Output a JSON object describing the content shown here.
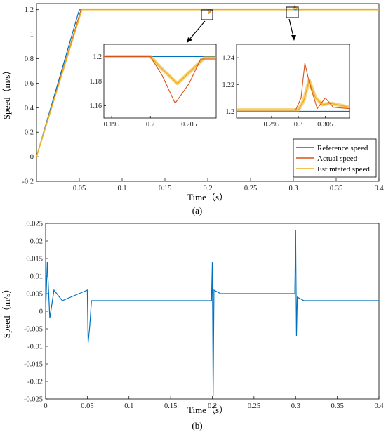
{
  "colors": {
    "reference": "#0072BD",
    "actual": "#D95319",
    "estimated": "#EDB120",
    "error": "#0072BD"
  },
  "chart_data": [
    {
      "id": "a",
      "type": "line",
      "caption": "(a)",
      "xlabel": "Time（s）",
      "ylabel": "Speed（m/s）",
      "xlim": [
        0,
        0.4
      ],
      "ylim": [
        -0.2,
        1.25
      ],
      "xticks": [
        "0.05",
        "0.1",
        "0.15",
        "0.2",
        "0.25",
        "0.3",
        "0.35",
        "0.4"
      ],
      "yticks": [
        "-0.2",
        "0",
        "0.2",
        "0.4",
        "0.6",
        "0.8",
        "1",
        "1.2"
      ],
      "legend": {
        "position": "bottom-right",
        "entries": [
          "Reference speed",
          "Actual speed",
          "Estimtated speed"
        ]
      },
      "series": [
        {
          "name": "Reference speed",
          "x": [
            0,
            0.05,
            0.4
          ],
          "y": [
            0,
            1.2,
            1.2
          ]
        },
        {
          "name": "Actual speed",
          "x": [
            0,
            0.052,
            0.2,
            0.2015,
            0.2035,
            0.205,
            0.3,
            0.3015,
            0.3035,
            0.305,
            0.4
          ],
          "y": [
            0,
            1.2,
            1.2,
            1.17,
            1.19,
            1.2,
            1.2,
            1.23,
            1.21,
            1.2,
            1.2
          ]
        },
        {
          "name": "Estimtated speed",
          "x": [
            0,
            0.053,
            0.2,
            0.2015,
            0.2035,
            0.205,
            0.3,
            0.3015,
            0.3035,
            0.305,
            0.4
          ],
          "y": [
            0,
            1.2,
            1.2,
            1.18,
            1.195,
            1.2,
            1.2,
            1.22,
            1.21,
            1.2,
            1.2
          ]
        }
      ],
      "insets": [
        {
          "id": "inset-1",
          "xlim": [
            0.194,
            0.2085
          ],
          "ylim": [
            1.15,
            1.21
          ],
          "xticks": [
            "0.195",
            "0.2",
            "0.205"
          ],
          "yticks": [
            "1.16",
            "1.18",
            "1.2"
          ],
          "reference": {
            "x": [
              0.194,
              0.2085
            ],
            "y": [
              1.2,
              1.2
            ]
          },
          "actual": {
            "x": [
              0.194,
              0.198,
              0.2,
              0.2015,
              0.2032,
              0.205,
              0.2065,
              0.2085
            ],
            "y": [
              1.2,
              1.2,
              1.2,
              1.185,
              1.162,
              1.178,
              1.198,
              1.198
            ]
          },
          "estimated": {
            "x": [
              0.194,
              0.198,
              0.2,
              0.2015,
              0.2035,
              0.2055,
              0.207,
              0.2085
            ],
            "y": [
              1.2,
              1.2,
              1.2,
              1.19,
              1.178,
              1.19,
              1.199,
              1.199
            ]
          }
        },
        {
          "id": "inset-2",
          "xlim": [
            0.2885,
            0.3095
          ],
          "ylim": [
            1.195,
            1.25
          ],
          "xticks": [
            "0.295",
            "0.3",
            "0.305"
          ],
          "yticks": [
            "1.2",
            "1.22",
            "1.24"
          ],
          "reference": {
            "x": [
              0.2885,
              0.3095
            ],
            "y": [
              1.2,
              1.2
            ]
          },
          "actual": {
            "x": [
              0.2885,
              0.2995,
              0.3005,
              0.3012,
              0.302,
              0.3035,
              0.305,
              0.3065,
              0.3095
            ],
            "y": [
              1.201,
              1.201,
              1.21,
              1.236,
              1.222,
              1.202,
              1.21,
              1.203,
              1.202
            ]
          },
          "estimated": {
            "x": [
              0.2885,
              0.3,
              0.301,
              0.302,
              0.3032,
              0.3045,
              0.306,
              0.3095
            ],
            "y": [
              1.201,
              1.201,
              1.208,
              1.223,
              1.21,
              1.205,
              1.206,
              1.203
            ]
          }
        }
      ]
    },
    {
      "id": "b",
      "type": "line",
      "caption": "(b)",
      "xlabel": "Time（s）",
      "ylabel": "Speed（m/s）",
      "xlim": [
        0,
        0.4
      ],
      "ylim": [
        -0.025,
        0.025
      ],
      "xticks": [
        "0",
        "0.05",
        "0.1",
        "0.15",
        "0.2",
        "0.25",
        "0.3",
        "0.35",
        "0.4"
      ],
      "yticks": [
        "-0.025",
        "-0.02",
        "-0.015",
        "-0.01",
        "-0.005",
        "0",
        "0.005",
        "0.01",
        "0.015",
        "0.02",
        "0.025"
      ],
      "series": [
        {
          "x": [
            0,
            0.002,
            0.005,
            0.01,
            0.02,
            0.03,
            0.04,
            0.05,
            0.051,
            0.053,
            0.055,
            0.1,
            0.15,
            0.199,
            0.2,
            0.201,
            0.202,
            0.21,
            0.25,
            0.299,
            0.3,
            0.301,
            0.302,
            0.31,
            0.35,
            0.4
          ],
          "y": [
            0,
            0.014,
            -0.002,
            0.006,
            0.003,
            0.004,
            0.005,
            0.006,
            -0.009,
            -0.004,
            0.003,
            0.003,
            0.003,
            0.003,
            0.014,
            -0.024,
            0.006,
            0.005,
            0.005,
            0.005,
            0.023,
            -0.007,
            0.004,
            0.003,
            0.003,
            0.003
          ]
        }
      ]
    }
  ]
}
